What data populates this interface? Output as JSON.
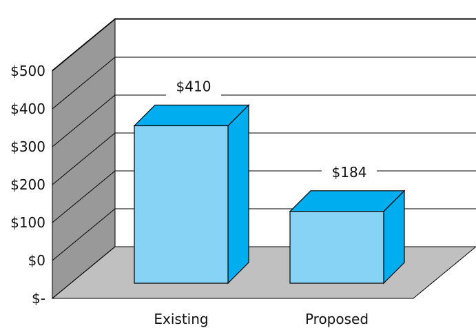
{
  "chart_data": {
    "type": "bar",
    "style": "3d",
    "categories": [
      "Existing",
      "Proposed"
    ],
    "values": [
      410,
      184
    ],
    "data_labels": [
      "$410",
      "$184"
    ],
    "y_tick_labels": [
      "$-",
      "$0",
      "$100",
      "$200",
      "$300",
      "$400",
      "$500"
    ],
    "grid": true,
    "legend": "none",
    "colors": {
      "bar_front": "#87d3f5",
      "bar_top": "#00aeef",
      "bar_side": "#00aeef",
      "wall": "#999999",
      "floor": "#c0c0c0",
      "gridline": "#000000",
      "outline": "#000000"
    }
  }
}
